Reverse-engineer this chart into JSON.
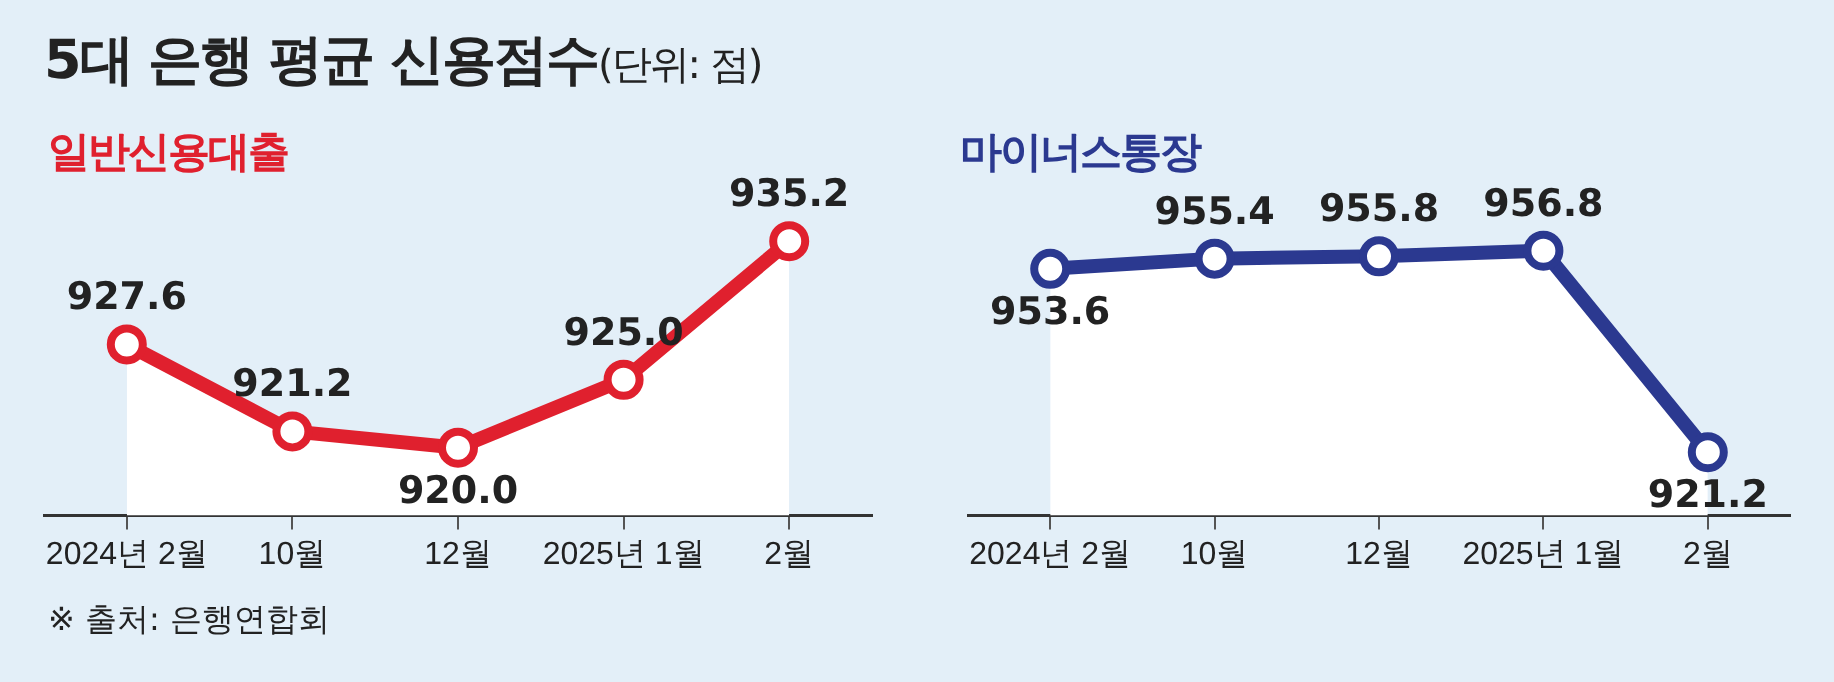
{
  "chart_data": [
    {
      "type": "area",
      "title": "5대 은행 평균 신용점수",
      "subtitle": "(단위: 점)",
      "categories": [
        "2024년 2월",
        "10월",
        "12월",
        "2025년 1월",
        "2월"
      ],
      "series": [
        {
          "name": "일반신용대출",
          "color": "#e0202e",
          "values": [
            927.6,
            921.2,
            920.0,
            925.0,
            935.2
          ],
          "value_labels": [
            "927.6",
            "921.2",
            "920.0",
            "925.0",
            "935.2"
          ]
        }
      ],
      "tick_labels": "x",
      "grid": false,
      "legend": false,
      "marker": "circle",
      "line_style": "solid",
      "annotations": [
        "※ 출처: 은행연합회"
      ]
    },
    {
      "type": "area",
      "categories": [
        "2024년 2월",
        "10월",
        "12월",
        "2025년 1월",
        "2월"
      ],
      "series": [
        {
          "name": "마이너스통장",
          "color": "#2b3990",
          "values": [
            953.6,
            955.4,
            955.8,
            956.8,
            921.2
          ],
          "value_labels": [
            "953.6",
            "955.4",
            "955.8",
            "956.8",
            "921.2"
          ]
        }
      ],
      "tick_labels": "x",
      "grid": false,
      "legend": false,
      "marker": "circle",
      "line_style": "solid"
    }
  ]
}
